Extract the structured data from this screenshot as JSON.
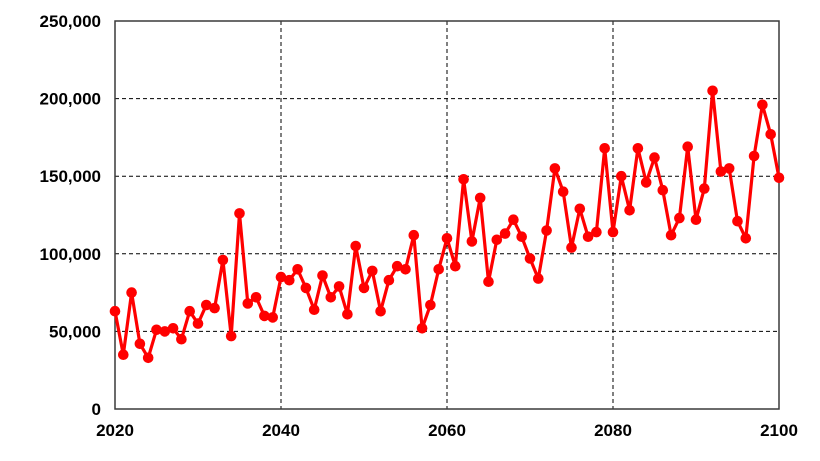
{
  "chart_data": {
    "type": "line",
    "title": "",
    "xlabel": "",
    "ylabel": "",
    "x": [
      2020,
      2021,
      2022,
      2023,
      2024,
      2025,
      2026,
      2027,
      2028,
      2029,
      2030,
      2031,
      2032,
      2033,
      2034,
      2035,
      2036,
      2037,
      2038,
      2039,
      2040,
      2041,
      2042,
      2043,
      2044,
      2045,
      2046,
      2047,
      2048,
      2049,
      2050,
      2051,
      2052,
      2053,
      2054,
      2055,
      2056,
      2057,
      2058,
      2059,
      2060,
      2061,
      2062,
      2063,
      2064,
      2065,
      2066,
      2067,
      2068,
      2069,
      2070,
      2071,
      2072,
      2073,
      2074,
      2075,
      2076,
      2077,
      2078,
      2079,
      2080,
      2081,
      2082,
      2083,
      2084,
      2085,
      2086,
      2087,
      2088,
      2089,
      2090,
      2091,
      2092,
      2093,
      2094,
      2095,
      2096,
      2097,
      2098,
      2099,
      2100
    ],
    "values": [
      63000,
      35000,
      75000,
      42000,
      33000,
      51000,
      50000,
      52000,
      45000,
      63000,
      55000,
      67000,
      65000,
      96000,
      47000,
      126000,
      68000,
      72000,
      60000,
      59000,
      85000,
      83000,
      90000,
      78000,
      64000,
      86000,
      72000,
      79000,
      61000,
      105000,
      78000,
      89000,
      63000,
      83000,
      92000,
      90000,
      112000,
      52000,
      67000,
      90000,
      110000,
      92000,
      148000,
      108000,
      136000,
      82000,
      109000,
      113000,
      122000,
      111000,
      97000,
      84000,
      115000,
      155000,
      140000,
      104000,
      129000,
      111000,
      114000,
      168000,
      114000,
      150000,
      128000,
      168000,
      146000,
      162000,
      141000,
      112000,
      123000,
      169000,
      122000,
      142000,
      205000,
      153000,
      155000,
      121000,
      110000,
      163000,
      196000,
      177000,
      149000
    ],
    "xlim": [
      2020,
      2100
    ],
    "ylim": [
      0,
      250000
    ],
    "x_ticks": [
      2020,
      2040,
      2060,
      2080,
      2100
    ],
    "x_tick_labels": [
      "2020",
      "2040",
      "2060",
      "2080",
      "2100"
    ],
    "y_ticks": [
      0,
      50000,
      100000,
      150000,
      200000,
      250000
    ],
    "y_tick_labels": [
      "0",
      "50,000",
      "100,000",
      "150,000",
      "200,000",
      "250,000"
    ],
    "grid": true,
    "legend": false,
    "series_color": "#ff0000",
    "grid_color": "#000000",
    "border_color": "#3a3a3a",
    "marker": "circle"
  }
}
